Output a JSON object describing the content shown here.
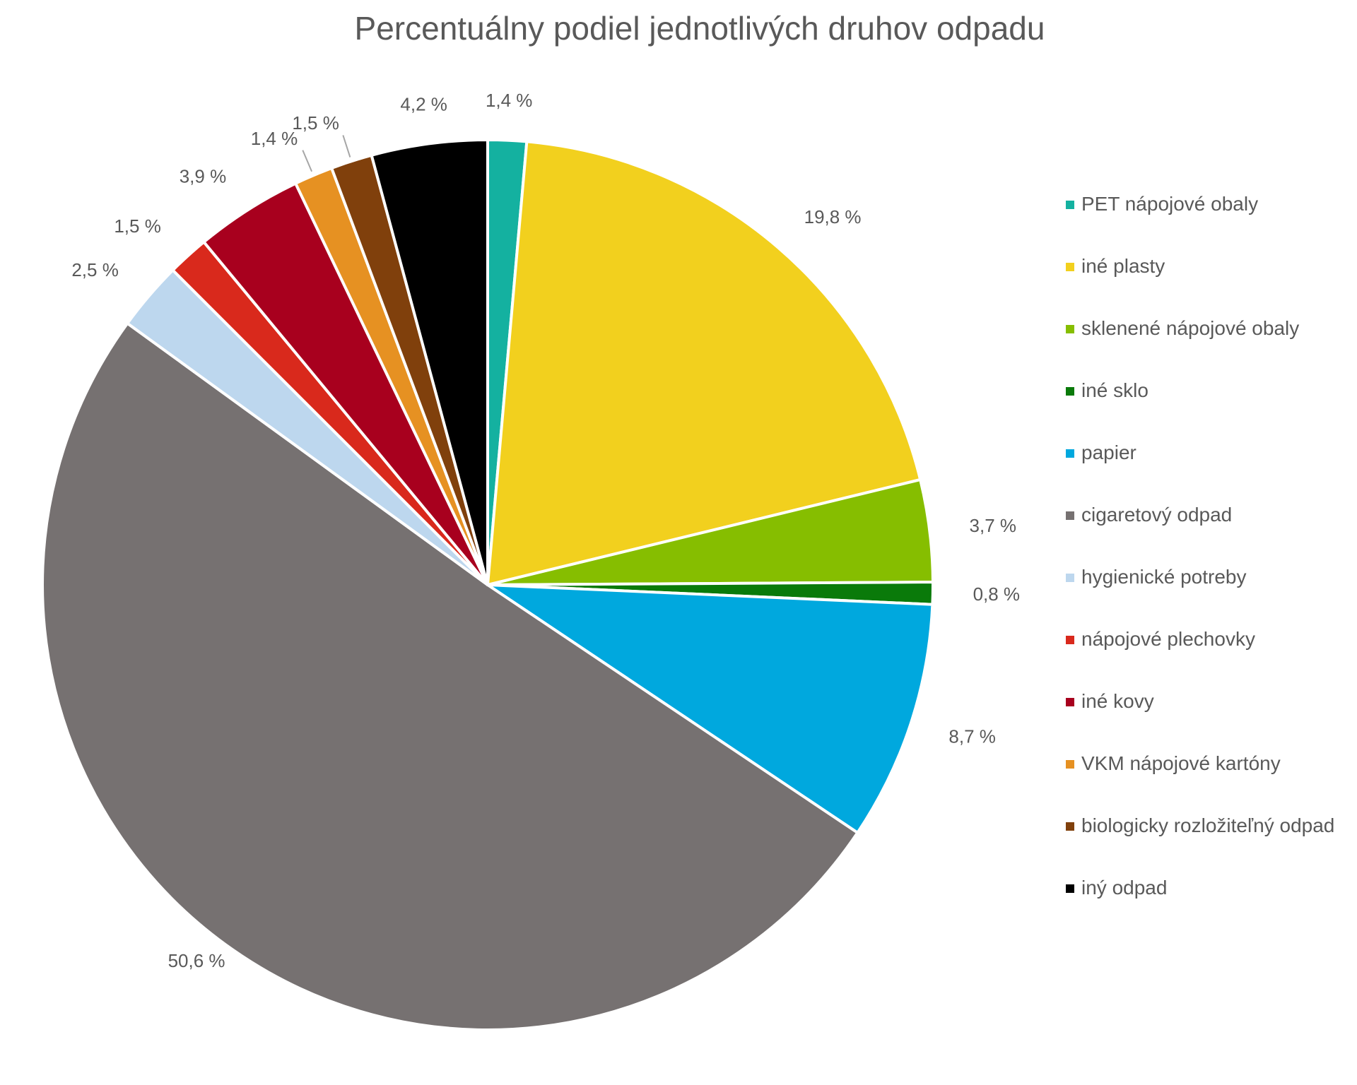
{
  "chart_data": {
    "type": "pie",
    "title": "Percentuálny podiel jednotlivých druhov odpadu",
    "slices": [
      {
        "name": "PET nápojové obaly",
        "value": 1.4,
        "label": "1,4 %",
        "color": "#14b1a0"
      },
      {
        "name": "iné plasty",
        "value": 19.8,
        "label": "19,8 %",
        "color": "#f2d01e"
      },
      {
        "name": "sklenené nápojové obaly",
        "value": 3.7,
        "label": "3,7 %",
        "color": "#86be00"
      },
      {
        "name": "iné sklo",
        "value": 0.8,
        "label": "0,8 %",
        "color": "#0a7a0a"
      },
      {
        "name": "papier",
        "value": 8.7,
        "label": "8,7 %",
        "color": "#00a8de"
      },
      {
        "name": "cigaretový odpad",
        "value": 50.6,
        "label": "50,6 %",
        "color": "#767171"
      },
      {
        "name": "hygienické potreby",
        "value": 2.5,
        "label": "2,5 %",
        "color": "#bdd7ee"
      },
      {
        "name": "nápojové plechovky",
        "value": 1.5,
        "label": "1,5 %",
        "color": "#d9291c"
      },
      {
        "name": "iné kovy",
        "value": 3.9,
        "label": "3,9 %",
        "color": "#a8001e"
      },
      {
        "name": "VKM nápojové kartóny",
        "value": 1.4,
        "label": "1,4 %",
        "color": "#e69122"
      },
      {
        "name": "biologicky rozložiteľný odpad",
        "value": 1.5,
        "label": "1,5 %",
        "color": "#80400c"
      },
      {
        "name": "iný odpad",
        "value": 4.2,
        "label": "4,2 %",
        "color": "#000000"
      }
    ],
    "legend_position": "right",
    "start_angle": "top",
    "direction": "clockwise"
  }
}
